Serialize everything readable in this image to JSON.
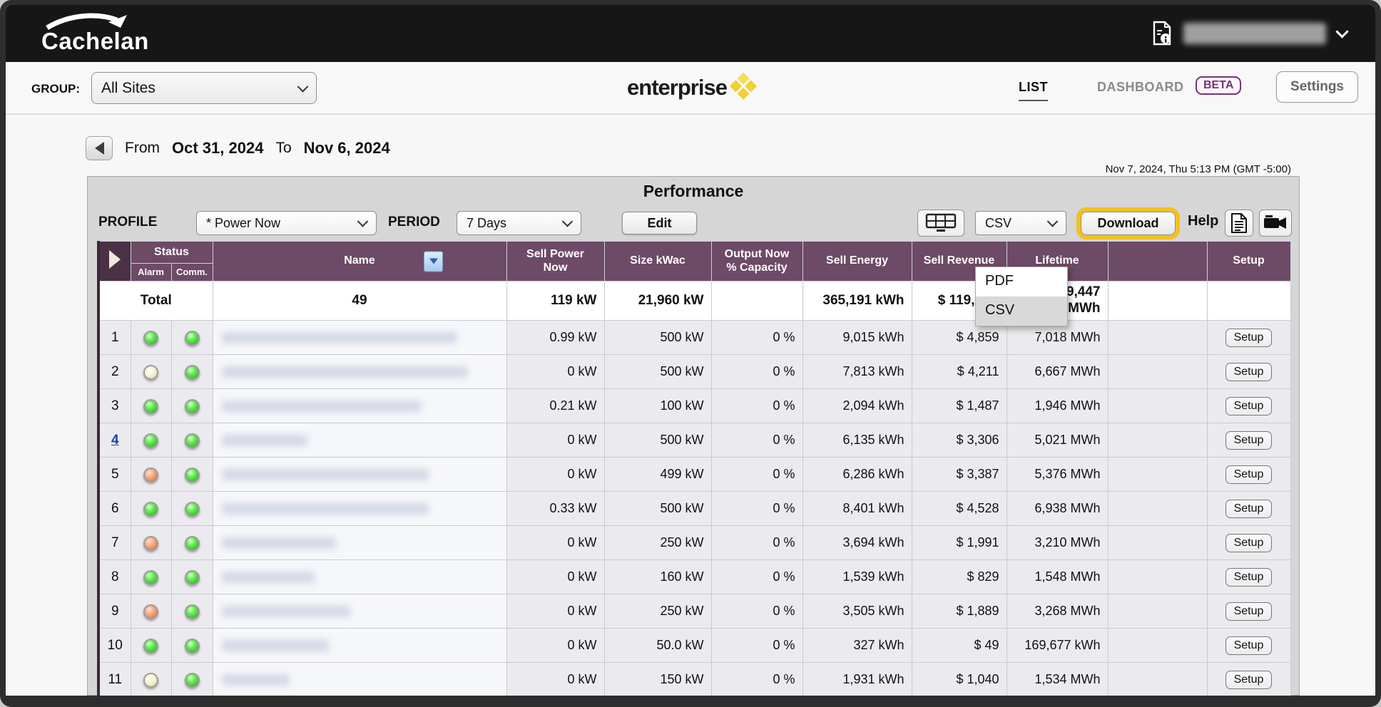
{
  "colors": {
    "header_purple": "#6d4a66",
    "header_purple_dark": "#4a3145",
    "accent_yellow": "#f2c21c",
    "beta_purple": "#7d2f7d",
    "link_blue": "#1b3faa"
  },
  "topbar": {
    "logo_text": "Cachelan"
  },
  "navbar": {
    "group_label": "GROUP:",
    "group_value": "All Sites",
    "brand": "enterprise",
    "list_tab": "LIST",
    "dashboard_tab": "DASHBOARD",
    "beta_badge": "BETA",
    "settings_button": "Settings"
  },
  "date_nav": {
    "from_label": "From",
    "from_date": "Oct 31, 2024",
    "to_label": "To",
    "to_date": "Nov 6, 2024"
  },
  "timestamp": "Nov 7, 2024, Thu 5:13 PM (GMT -5:00)",
  "panel": {
    "title": "Performance",
    "profile_label": "PROFILE",
    "profile_value": "* Power Now",
    "period_label": "PERIOD",
    "period_value": "7 Days",
    "edit_button": "Edit",
    "format_value": "CSV",
    "format_options": [
      "PDF",
      "CSV"
    ],
    "format_selected": "CSV",
    "download_button": "Download",
    "help_label": "Help"
  },
  "table": {
    "headers": {
      "status": "Status",
      "alarm": "Alarm",
      "comm": "Comm.",
      "name": "Name",
      "sell_power_now": "Sell Power\nNow",
      "size_kwac": "Size kWac",
      "output_now": "Output Now\n% Capacity",
      "sell_energy": "Sell Energy",
      "sell_revenue": "Sell Revenue",
      "lifetime": "Lifetime",
      "setup": "Setup"
    },
    "setup_label": "Setup",
    "total": {
      "label": "Total",
      "count": "49",
      "sell_power": "119 kW",
      "size": "21,960 kW",
      "output": "",
      "energy": "365,191 kWh",
      "revenue": "$ 119,",
      "lifetime": "9,447\nMWh"
    },
    "rows": [
      {
        "num": "1",
        "link": false,
        "alarm": "green",
        "comm": "green",
        "power": "0.99 kW",
        "size": "500 kW",
        "output": "0 %",
        "energy": "9,015 kWh",
        "revenue": "$ 4,859",
        "lifetime": "7,018 MWh"
      },
      {
        "num": "2",
        "link": false,
        "alarm": "yellow",
        "comm": "green",
        "power": "0 kW",
        "size": "500 kW",
        "output": "0 %",
        "energy": "7,813 kWh",
        "revenue": "$ 4,211",
        "lifetime": "6,667 MWh"
      },
      {
        "num": "3",
        "link": false,
        "alarm": "green",
        "comm": "green",
        "power": "0.21 kW",
        "size": "100 kW",
        "output": "0 %",
        "energy": "2,094 kWh",
        "revenue": "$ 1,487",
        "lifetime": "1,946 MWh"
      },
      {
        "num": "4",
        "link": true,
        "alarm": "green",
        "comm": "green",
        "power": "0 kW",
        "size": "500 kW",
        "output": "0 %",
        "energy": "6,135 kWh",
        "revenue": "$ 3,306",
        "lifetime": "5,021 MWh"
      },
      {
        "num": "5",
        "link": false,
        "alarm": "orange",
        "comm": "green",
        "power": "0 kW",
        "size": "499 kW",
        "output": "0 %",
        "energy": "6,286 kWh",
        "revenue": "$ 3,387",
        "lifetime": "5,376 MWh"
      },
      {
        "num": "6",
        "link": false,
        "alarm": "green",
        "comm": "green",
        "power": "0.33 kW",
        "size": "500 kW",
        "output": "0 %",
        "energy": "8,401 kWh",
        "revenue": "$ 4,528",
        "lifetime": "6,938 MWh"
      },
      {
        "num": "7",
        "link": false,
        "alarm": "orange",
        "comm": "green",
        "power": "0 kW",
        "size": "250 kW",
        "output": "0 %",
        "energy": "3,694 kWh",
        "revenue": "$ 1,991",
        "lifetime": "3,210 MWh"
      },
      {
        "num": "8",
        "link": false,
        "alarm": "green",
        "comm": "green",
        "power": "0 kW",
        "size": "160 kW",
        "output": "0 %",
        "energy": "1,539 kWh",
        "revenue": "$ 829",
        "lifetime": "1,548 MWh"
      },
      {
        "num": "9",
        "link": false,
        "alarm": "orange",
        "comm": "green",
        "power": "0 kW",
        "size": "250 kW",
        "output": "0 %",
        "energy": "3,505 kWh",
        "revenue": "$ 1,889",
        "lifetime": "3,268 MWh"
      },
      {
        "num": "10",
        "link": false,
        "alarm": "green",
        "comm": "green",
        "power": "0 kW",
        "size": "50.0 kW",
        "output": "0 %",
        "energy": "327 kWh",
        "revenue": "$ 49",
        "lifetime": "169,677 kWh"
      },
      {
        "num": "11",
        "link": false,
        "alarm": "yellow",
        "comm": "green",
        "power": "0 kW",
        "size": "150 kW",
        "output": "0 %",
        "energy": "1,931 kWh",
        "revenue": "$ 1,040",
        "lifetime": "1,534 MWh"
      }
    ],
    "name_blur_widths": [
      330,
      345,
      280,
      120,
      290,
      290,
      160,
      130,
      180,
      150,
      95
    ]
  }
}
